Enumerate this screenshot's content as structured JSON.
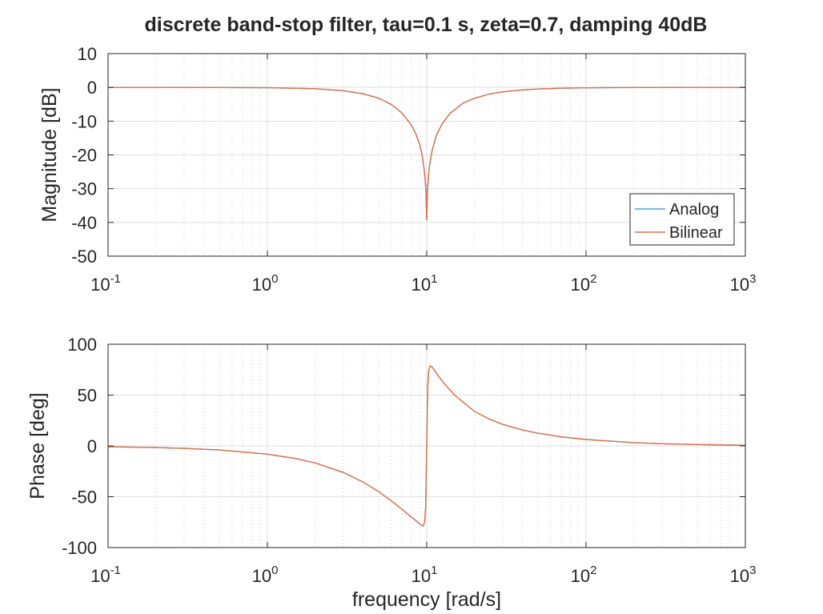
{
  "chart_data": [
    {
      "type": "line",
      "title": "discrete band-stop filter, tau=0.1 s, zeta=0.7, damping 40dB",
      "xlabel": "",
      "ylabel": "Magnitude [dB]",
      "xscale": "log",
      "xlim": [
        0.1,
        1000
      ],
      "ylim": [
        -50,
        10
      ],
      "xticks": [
        {
          "base": "10",
          "exp": "-1"
        },
        {
          "base": "10",
          "exp": "0"
        },
        {
          "base": "10",
          "exp": "1"
        },
        {
          "base": "10",
          "exp": "2"
        },
        {
          "base": "10",
          "exp": "3"
        }
      ],
      "yticks": [
        "10",
        "0",
        "-10",
        "-20",
        "-30",
        "-40",
        "-50"
      ],
      "grid": true,
      "legend": {
        "position": "bottom-right",
        "entries": [
          "Analog",
          "Bilinear"
        ]
      },
      "series": [
        {
          "name": "Analog",
          "color": "#4DA6DF",
          "x": [
            0.1,
            0.2,
            0.5,
            1,
            2,
            3,
            4,
            5,
            6,
            7,
            8,
            8.5,
            9,
            9.3,
            9.6,
            9.8,
            9.9,
            10,
            10.1,
            10.2,
            10.4,
            10.8,
            11.5,
            12.5,
            14,
            17,
            20,
            25,
            30,
            40,
            50,
            70,
            100,
            200,
            500,
            1000
          ],
          "y": [
            -0.0009,
            -0.0038,
            -0.024,
            -0.095,
            -0.395,
            -0.97,
            -1.89,
            -3.2,
            -5.05,
            -7.6,
            -11.13,
            -13.5,
            -16.7,
            -19.3,
            -23.6,
            -27.8,
            -31.3,
            -39.4,
            -31.2,
            -27.8,
            -23.4,
            -18.8,
            -14.2,
            -10.8,
            -7.7,
            -4.6,
            -3.2,
            -1.92,
            -1.3,
            -0.74,
            -0.47,
            -0.24,
            -0.12,
            -0.03,
            -0.005,
            -0.0012
          ]
        },
        {
          "name": "Bilinear",
          "color": "#E0714A",
          "x": [
            0.1,
            0.2,
            0.5,
            1,
            2,
            3,
            4,
            5,
            6,
            7,
            8,
            8.5,
            9,
            9.3,
            9.6,
            9.8,
            9.9,
            10,
            10.1,
            10.2,
            10.4,
            10.8,
            11.5,
            12.5,
            14,
            17,
            20,
            25,
            30,
            40,
            50,
            70,
            100,
            200,
            500,
            1000
          ],
          "y": [
            -0.0009,
            -0.0038,
            -0.024,
            -0.095,
            -0.395,
            -0.97,
            -1.89,
            -3.2,
            -5.05,
            -7.6,
            -11.13,
            -13.5,
            -16.7,
            -19.3,
            -23.6,
            -27.8,
            -31.3,
            -39.4,
            -31.2,
            -27.8,
            -23.4,
            -18.8,
            -14.2,
            -10.8,
            -7.7,
            -4.6,
            -3.2,
            -1.92,
            -1.3,
            -0.74,
            -0.47,
            -0.24,
            -0.12,
            -0.03,
            -0.005,
            -0.0012
          ]
        }
      ]
    },
    {
      "type": "line",
      "title": "",
      "xlabel": "frequency [rad/s]",
      "ylabel": "Phase [deg]",
      "xscale": "log",
      "xlim": [
        0.1,
        1000
      ],
      "ylim": [
        -100,
        100
      ],
      "xticks": [
        {
          "base": "10",
          "exp": "-1"
        },
        {
          "base": "10",
          "exp": "0"
        },
        {
          "base": "10",
          "exp": "1"
        },
        {
          "base": "10",
          "exp": "2"
        },
        {
          "base": "10",
          "exp": "3"
        }
      ],
      "yticks": [
        "100",
        "50",
        "0",
        "-50",
        "-100"
      ],
      "grid": true,
      "series": [
        {
          "name": "Analog",
          "color": "#4DA6DF",
          "x": [
            0.1,
            0.2,
            0.3,
            0.5,
            1,
            1.5,
            2,
            3,
            4,
            5,
            6,
            7,
            8,
            8.5,
            9,
            9.3,
            9.5,
            9.7,
            9.85,
            9.95,
            10.05,
            10.15,
            10.3,
            10.5,
            10.8,
            11,
            11.5,
            12,
            13,
            15,
            20,
            25,
            30,
            40,
            50,
            70,
            100,
            200,
            300,
            500,
            1000
          ],
          "y": [
            -0.8,
            -1.6,
            -2.4,
            -4.0,
            -8.1,
            -12.4,
            -16.8,
            -26.1,
            -35.7,
            -45.0,
            -54.1,
            -62.4,
            -69.9,
            -73.2,
            -76.5,
            -78.3,
            -78.8,
            -75.0,
            -60.0,
            -20.0,
            20.0,
            58.0,
            74.0,
            78.7,
            77.6,
            75.9,
            71.7,
            67.6,
            60.6,
            49.8,
            33.8,
            26.0,
            21.2,
            15.6,
            12.5,
            8.9,
            6.3,
            3.2,
            2.1,
            1.3,
            0.6
          ]
        },
        {
          "name": "Bilinear",
          "color": "#E0714A",
          "x": [
            0.1,
            0.2,
            0.3,
            0.5,
            1,
            1.5,
            2,
            3,
            4,
            5,
            6,
            7,
            8,
            8.5,
            9,
            9.3,
            9.5,
            9.7,
            9.85,
            9.95,
            10.05,
            10.15,
            10.3,
            10.5,
            10.8,
            11,
            11.5,
            12,
            13,
            15,
            20,
            25,
            30,
            40,
            50,
            70,
            100,
            200,
            300,
            500,
            1000
          ],
          "y": [
            -0.8,
            -1.6,
            -2.4,
            -4.0,
            -8.1,
            -12.4,
            -16.8,
            -26.1,
            -35.7,
            -45.0,
            -54.1,
            -62.4,
            -69.9,
            -73.2,
            -76.5,
            -78.3,
            -78.8,
            -75.0,
            -60.0,
            -20.0,
            20.0,
            58.0,
            74.0,
            78.7,
            77.6,
            75.9,
            71.7,
            67.6,
            60.6,
            49.8,
            33.8,
            26.0,
            21.2,
            15.6,
            12.5,
            8.9,
            6.3,
            3.2,
            2.1,
            1.3,
            0.6
          ]
        }
      ]
    }
  ]
}
